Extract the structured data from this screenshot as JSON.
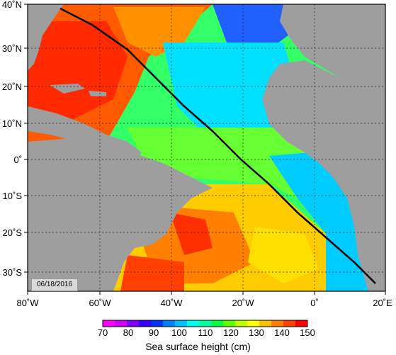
{
  "map": {
    "date": "06/18/2016",
    "lon_ticks": [
      "80˚W",
      "60˚W",
      "40˚W",
      "20˚W",
      "0˚",
      "20˚E"
    ],
    "lat_ticks": [
      "40˚N",
      "30˚N",
      "20˚N",
      "10˚N",
      "0˚",
      "10˚S",
      "20˚S",
      "30˚S"
    ],
    "land_color": "#9e9e9e"
  },
  "colorbar": {
    "title": "Sea surface height (cm)",
    "ticks": [
      "70",
      "80",
      "90",
      "100",
      "110",
      "120",
      "130",
      "140",
      "150"
    ],
    "colors": [
      "#ff00ff",
      "#cc00ff",
      "#7f00ff",
      "#3300ff",
      "#0033ff",
      "#0080ff",
      "#00c0ff",
      "#00ffee",
      "#00ffa0",
      "#00ff40",
      "#60ff00",
      "#c0ff00",
      "#ffff00",
      "#ffc000",
      "#ff8000",
      "#ff4000",
      "#ff0000"
    ]
  },
  "track": {
    "label": "",
    "color": "#000000"
  }
}
